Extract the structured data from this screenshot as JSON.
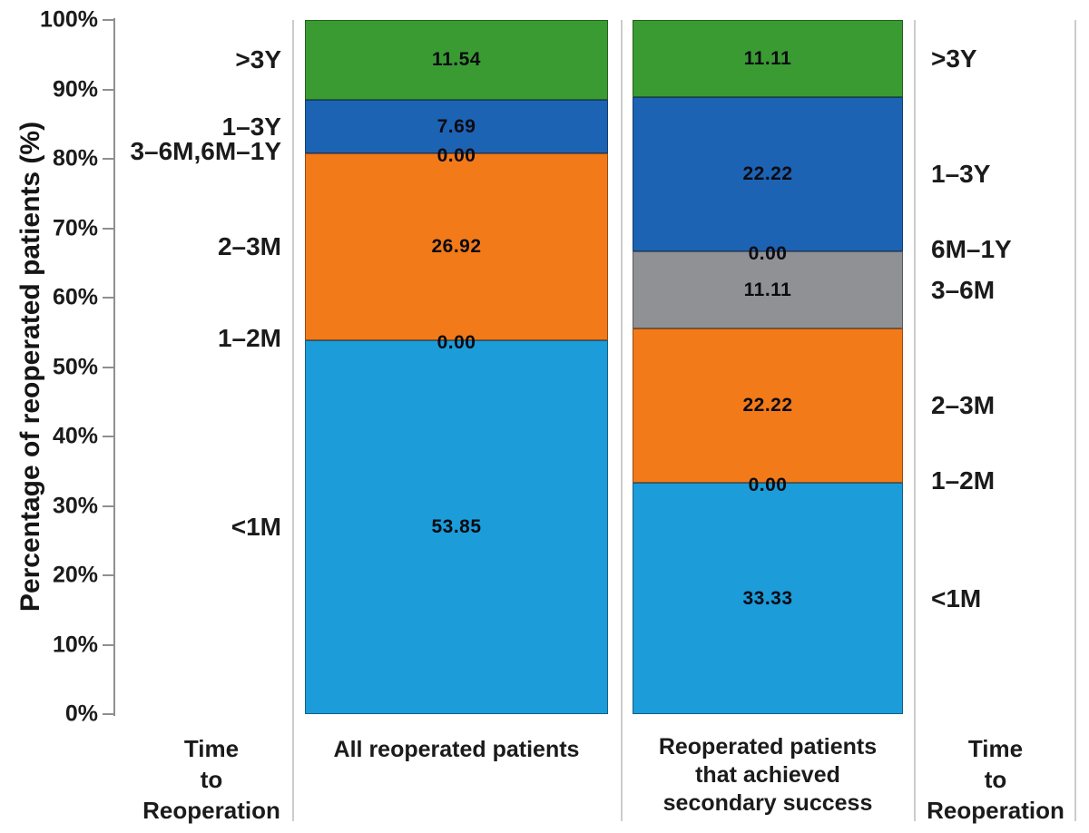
{
  "figure": {
    "y_axis": {
      "title": "Percentage of reoperated patients (%)",
      "tick_labels": [
        "0%",
        "10%",
        "20%",
        "30%",
        "40%",
        "50%",
        "60%",
        "70%",
        "80%",
        "90%",
        "100%"
      ]
    },
    "footers": {
      "left_time_label": "Time\nto\nReoperation",
      "right_time_label": "Time\nto\nReoperation"
    }
  },
  "chart_data": {
    "type": "bar",
    "stacked": true,
    "title": "",
    "xlabel": "",
    "ylabel": "Percentage of reoperated patients (%)",
    "ylim": [
      0,
      100
    ],
    "yticks_percent": [
      0,
      10,
      20,
      30,
      40,
      50,
      60,
      70,
      80,
      90,
      100
    ],
    "grid": false,
    "legend_position": "segment labels shown beside each bar under heading Time to Reoperation",
    "categories": [
      "All reoperated patients",
      "Reoperated patients that achieved secondary success"
    ],
    "bars": [
      {
        "category": "All reoperated patients",
        "category_lines": "All reoperated patients",
        "side_label_side": "left",
        "segments_bottom_to_top": [
          {
            "time_to_reoperation": "<1M",
            "value": 53.85,
            "value_label": "53.85",
            "color": "lightblue"
          },
          {
            "time_to_reoperation": "1–2M",
            "value": 0,
            "value_label": "0.00",
            "color": "none"
          },
          {
            "time_to_reoperation": "2–3M",
            "value": 26.92,
            "value_label": "26.92",
            "color": "orange"
          },
          {
            "time_to_reoperation": "3–6M,6M–1Y",
            "value": 0,
            "value_label": "0.00",
            "color": "none"
          },
          {
            "time_to_reoperation": "1–3Y",
            "value": 7.69,
            "value_label": "7.69",
            "color": "blue"
          },
          {
            "time_to_reoperation": ">3Y",
            "value": 11.54,
            "value_label": "11.54",
            "color": "green"
          }
        ]
      },
      {
        "category": "Reoperated patients that achieved secondary success",
        "category_lines": "Reoperated patients\nthat achieved\nsecondary success",
        "side_label_side": "right",
        "segments_bottom_to_top": [
          {
            "time_to_reoperation": "<1M",
            "value": 33.33,
            "value_label": "33.33",
            "color": "lightblue"
          },
          {
            "time_to_reoperation": "1–2M",
            "value": 0,
            "value_label": "0.00",
            "color": "none"
          },
          {
            "time_to_reoperation": "2–3M",
            "value": 22.22,
            "value_label": "22.22",
            "color": "orange"
          },
          {
            "time_to_reoperation": "3–6M",
            "value": 11.11,
            "value_label": "11.11",
            "color": "gray"
          },
          {
            "time_to_reoperation": "6M–1Y",
            "value": 0,
            "value_label": "0.00",
            "color": "none"
          },
          {
            "time_to_reoperation": "1–3Y",
            "value": 22.22,
            "value_label": "22.22",
            "color": "blue"
          },
          {
            "time_to_reoperation": ">3Y",
            "value": 11.11,
            "value_label": "11.11",
            "color": "green"
          }
        ]
      }
    ],
    "colors": {
      "lightblue": "#1C9CD9",
      "orange": "#F37A19",
      "gray": "#909194",
      "blue": "#1D63B4",
      "green": "#3A9B33",
      "none": "transparent"
    }
  }
}
